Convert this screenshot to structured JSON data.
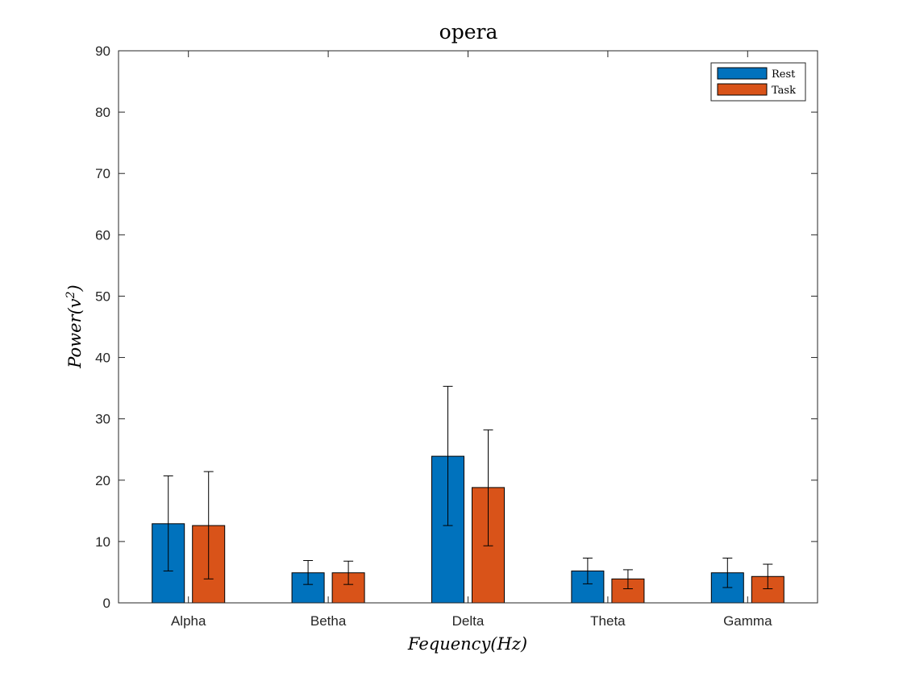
{
  "chart_data": {
    "type": "bar",
    "title": "opera",
    "xlabel": "Fequency(Hz)",
    "ylabel_prefix": "Power(v",
    "ylabel_sup": "2",
    "ylabel_suffix": ")",
    "categories": [
      "Alpha",
      "Betha",
      "Delta",
      "Theta",
      "Gamma"
    ],
    "ylim": [
      0,
      90
    ],
    "yticks": [
      0,
      10,
      20,
      30,
      40,
      50,
      60,
      70,
      80,
      90
    ],
    "grid": false,
    "legend_position": "top-right",
    "series": [
      {
        "name": "Rest",
        "color": "#0072BD",
        "values": [
          12.9,
          4.9,
          23.9,
          5.2,
          4.9
        ],
        "err_low": [
          5.2,
          3.0,
          12.6,
          3.1,
          2.5
        ],
        "err_high": [
          20.7,
          6.9,
          35.3,
          7.3,
          7.3
        ]
      },
      {
        "name": "Task",
        "color": "#D95319",
        "values": [
          12.6,
          4.9,
          18.8,
          3.9,
          4.3
        ],
        "err_low": [
          3.9,
          3.0,
          9.3,
          2.3,
          2.3
        ],
        "err_high": [
          21.4,
          6.8,
          28.2,
          5.4,
          6.3
        ]
      }
    ]
  }
}
